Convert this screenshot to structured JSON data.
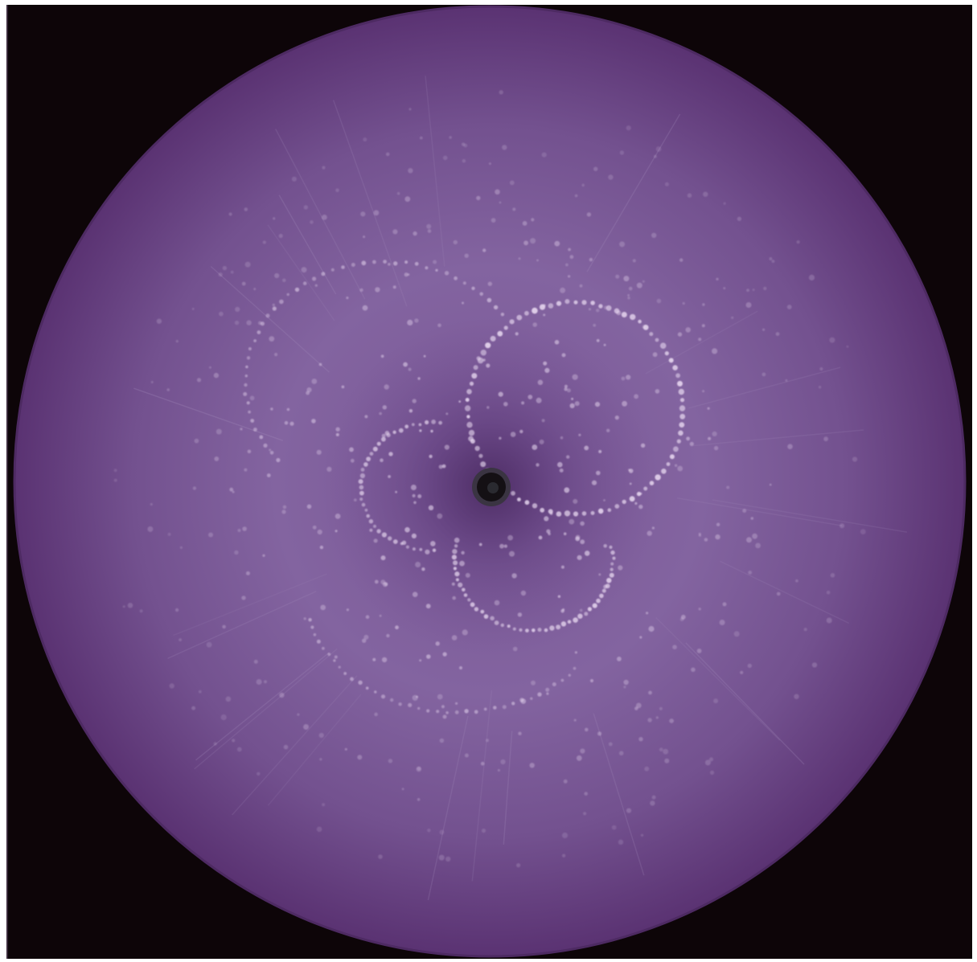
{
  "image": {
    "kind": "x-ray diffraction pattern",
    "colors": {
      "background": "#0d0508",
      "disc_edge": "#5a3272",
      "disc_center": "#8a6aa6",
      "disc_mid": "#7c5a98",
      "spot": "#e8d8f0",
      "beamstop": "#141014",
      "beamstop_ring": "#3a3442"
    }
  }
}
